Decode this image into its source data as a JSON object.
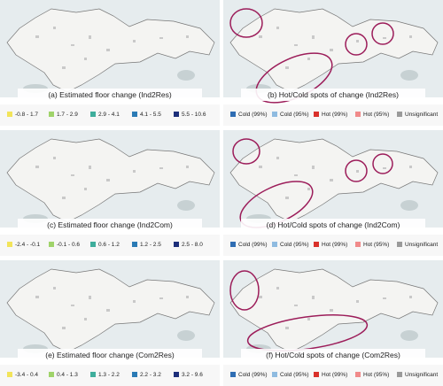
{
  "panels": [
    {
      "caption": "(a) Estimated floor change (Ind2Res)",
      "legend": [
        {
          "label": "-0.8 - 1.7",
          "color": "#f2e45a"
        },
        {
          "label": "1.7 - 2.9",
          "color": "#9fd36a"
        },
        {
          "label": "2.9 - 4.1",
          "color": "#3fae9c"
        },
        {
          "label": "4.1 - 5.5",
          "color": "#2b7bb5"
        },
        {
          "label": "5.5 - 10.6",
          "color": "#1d2f7a"
        }
      ]
    },
    {
      "caption": "(b) Hot/Cold spots of change (Ind2Res)",
      "legend": [
        {
          "label": "Cold (99%)",
          "color": "#2f6db3"
        },
        {
          "label": "Cold (95%)",
          "color": "#8fbbe0"
        },
        {
          "label": "Hot (99%)",
          "color": "#d9312b"
        },
        {
          "label": "Hot (95%)",
          "color": "#f08a8a"
        },
        {
          "label": "Unsignificant",
          "color": "#9a9a9a"
        }
      ]
    },
    {
      "caption": "(c) Estimated floor change (Ind2Com)",
      "legend": [
        {
          "label": "-2.4 - -0.1",
          "color": "#f2e45a"
        },
        {
          "label": "-0.1 - 0.6",
          "color": "#9fd36a"
        },
        {
          "label": "0.6 - 1.2",
          "color": "#3fae9c"
        },
        {
          "label": "1.2 - 2.5",
          "color": "#2b7bb5"
        },
        {
          "label": "2.5 - 8.0",
          "color": "#1d2f7a"
        }
      ]
    },
    {
      "caption": "(d) Hot/Cold spots of change (Ind2Com)",
      "legend": [
        {
          "label": "Cold (99%)",
          "color": "#2f6db3"
        },
        {
          "label": "Cold (95%)",
          "color": "#8fbbe0"
        },
        {
          "label": "Hot (99%)",
          "color": "#d9312b"
        },
        {
          "label": "Hot (95%)",
          "color": "#f08a8a"
        },
        {
          "label": "Unsignificant",
          "color": "#9a9a9a"
        }
      ]
    },
    {
      "caption": "(e) Estimated floor change (Com2Res)",
      "legend": [
        {
          "label": "-3.4 - 0.4",
          "color": "#f2e45a"
        },
        {
          "label": "0.4 - 1.3",
          "color": "#9fd36a"
        },
        {
          "label": "1.3 - 2.2",
          "color": "#3fae9c"
        },
        {
          "label": "2.2 - 3.2",
          "color": "#2b7bb5"
        },
        {
          "label": "3.2 - 9.6",
          "color": "#1d2f7a"
        }
      ]
    },
    {
      "caption": "(f) Hot/Cold spots of change (Com2Res)",
      "legend": [
        {
          "label": "Cold (99%)",
          "color": "#2f6db3"
        },
        {
          "label": "Cold (95%)",
          "color": "#8fbbe0"
        },
        {
          "label": "Hot (99%)",
          "color": "#d9312b"
        },
        {
          "label": "Hot (95%)",
          "color": "#f08a8a"
        },
        {
          "label": "Unsignificant",
          "color": "#9a9a9a"
        }
      ]
    }
  ]
}
